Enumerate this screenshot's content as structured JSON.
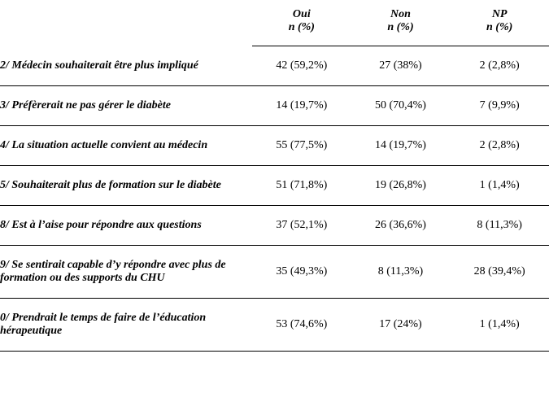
{
  "headers": {
    "col_oui_line1": "Oui",
    "col_oui_line2": "n (%)",
    "col_non_line1": "Non",
    "col_non_line2": "n (%)",
    "col_np_line1": "NP",
    "col_np_line2": "n (%)"
  },
  "rows": [
    {
      "label": "2/ Médecin souhaiterait être plus impliqué",
      "oui": "42 (59,2%)",
      "non": "27 (38%)",
      "np": "2 (2,8%)"
    },
    {
      "label": "3/ Préfèrerait ne pas gérer le diabète",
      "oui": "14 (19,7%)",
      "non": "50 (70,4%)",
      "np": "7 (9,9%)"
    },
    {
      "label": "4/ La situation actuelle convient au médecin",
      "oui": "55 (77,5%)",
      "non": "14 (19,7%)",
      "np": "2 (2,8%)"
    },
    {
      "label": "5/ Souhaiterait plus de formation sur le diabète",
      "oui": "51 (71,8%)",
      "non": "19 (26,8%)",
      "np": "1 (1,4%)"
    },
    {
      "label": "8/ Est à l’aise pour répondre aux questions",
      "oui": "37 (52,1%)",
      "non": "26 (36,6%)",
      "np": "8 (11,3%)"
    },
    {
      "label": "9/ Se sentirait capable d’y répondre avec plus de formation ou des supports du CHU",
      "oui": "35 (49,3%)",
      "non": "8 (11,3%)",
      "np": "28 (39,4%)"
    },
    {
      "label": "0/ Prendrait le temps de faire de l’éducation hérapeutique",
      "oui": "53 (74,6%)",
      "non": "17 (24%)",
      "np": "1 (1,4%)"
    }
  ]
}
